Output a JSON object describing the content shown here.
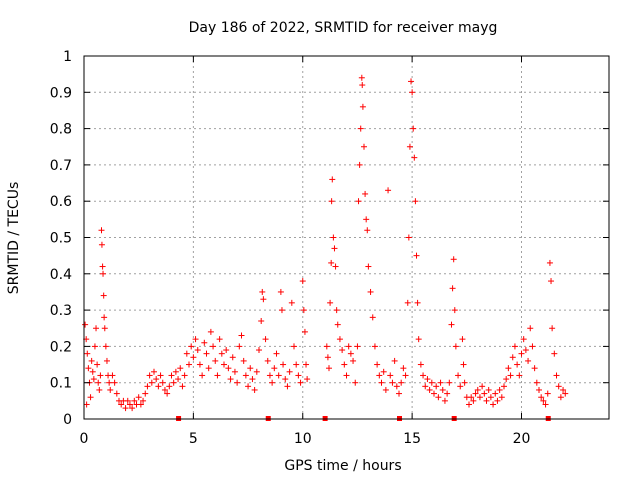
{
  "chart_data": {
    "type": "scatter",
    "title": "Day 186 of 2022, SRMTID for receiver mayg",
    "xlabel": "GPS time / hours",
    "ylabel": "SRMTID / TECUs",
    "xlim": [
      0,
      24
    ],
    "ylim": [
      0,
      1
    ],
    "xticks": [
      0,
      5,
      10,
      15,
      20
    ],
    "yticks": [
      0,
      0.1,
      0.2,
      0.3,
      0.4,
      0.5,
      0.6,
      0.7,
      0.8,
      0.9,
      1
    ],
    "xtick_labels": [
      "0",
      "5",
      "10",
      "15",
      "20"
    ],
    "ytick_labels": [
      "0",
      "0.1",
      "0.2",
      "0.3",
      "0.4",
      "0.5",
      "0.6",
      "0.7",
      "0.8",
      "0.9",
      "1"
    ],
    "grid": true,
    "marker": "+",
    "color": "#ff0000",
    "series": [
      {
        "name": "SRMTID",
        "points": [
          [
            0.05,
            0.26
          ],
          [
            0.1,
            0.22
          ],
          [
            0.15,
            0.18
          ],
          [
            0.2,
            0.14
          ],
          [
            0.25,
            0.1
          ],
          [
            0.3,
            0.06
          ],
          [
            0.12,
            0.04
          ],
          [
            0.35,
            0.16
          ],
          [
            0.4,
            0.13
          ],
          [
            0.45,
            0.11
          ],
          [
            0.5,
            0.2
          ],
          [
            0.55,
            0.25
          ],
          [
            0.6,
            0.15
          ],
          [
            0.65,
            0.1
          ],
          [
            0.7,
            0.08
          ],
          [
            0.75,
            0.12
          ],
          [
            0.8,
            0.52
          ],
          [
            0.82,
            0.48
          ],
          [
            0.85,
            0.42
          ],
          [
            0.87,
            0.4
          ],
          [
            0.9,
            0.34
          ],
          [
            0.92,
            0.28
          ],
          [
            0.95,
            0.25
          ],
          [
            1.0,
            0.2
          ],
          [
            1.05,
            0.16
          ],
          [
            1.1,
            0.12
          ],
          [
            1.15,
            0.1
          ],
          [
            1.2,
            0.08
          ],
          [
            1.3,
            0.12
          ],
          [
            1.4,
            0.1
          ],
          [
            1.5,
            0.07
          ],
          [
            1.6,
            0.05
          ],
          [
            1.7,
            0.04
          ],
          [
            1.8,
            0.05
          ],
          [
            1.9,
            0.03
          ],
          [
            2.0,
            0.05
          ],
          [
            2.1,
            0.04
          ],
          [
            2.2,
            0.03
          ],
          [
            2.3,
            0.05
          ],
          [
            2.4,
            0.04
          ],
          [
            2.5,
            0.06
          ],
          [
            2.6,
            0.04
          ],
          [
            2.7,
            0.05
          ],
          [
            2.8,
            0.07
          ],
          [
            2.9,
            0.09
          ],
          [
            3.0,
            0.12
          ],
          [
            3.1,
            0.1
          ],
          [
            3.2,
            0.13
          ],
          [
            3.3,
            0.11
          ],
          [
            3.4,
            0.09
          ],
          [
            3.5,
            0.12
          ],
          [
            3.6,
            0.1
          ],
          [
            3.7,
            0.08
          ],
          [
            3.8,
            0.07
          ],
          [
            3.9,
            0.09
          ],
          [
            4.0,
            0.12
          ],
          [
            4.1,
            0.1
          ],
          [
            4.2,
            0.13
          ],
          [
            4.3,
            0.11
          ],
          [
            4.4,
            0.14
          ],
          [
            4.5,
            0.09
          ],
          [
            4.6,
            0.12
          ],
          [
            4.7,
            0.18
          ],
          [
            4.8,
            0.15
          ],
          [
            4.9,
            0.2
          ],
          [
            5.0,
            0.17
          ],
          [
            5.1,
            0.22
          ],
          [
            5.2,
            0.19
          ],
          [
            5.3,
            0.15
          ],
          [
            5.4,
            0.12
          ],
          [
            5.5,
            0.21
          ],
          [
            5.6,
            0.18
          ],
          [
            5.7,
            0.14
          ],
          [
            5.8,
            0.24
          ],
          [
            5.9,
            0.2
          ],
          [
            6.0,
            0.16
          ],
          [
            6.1,
            0.12
          ],
          [
            6.2,
            0.22
          ],
          [
            6.3,
            0.18
          ],
          [
            6.4,
            0.15
          ],
          [
            6.5,
            0.19
          ],
          [
            6.6,
            0.14
          ],
          [
            6.7,
            0.11
          ],
          [
            6.8,
            0.17
          ],
          [
            6.9,
            0.13
          ],
          [
            7.0,
            0.1
          ],
          [
            7.1,
            0.2
          ],
          [
            7.2,
            0.23
          ],
          [
            7.3,
            0.16
          ],
          [
            7.4,
            0.12
          ],
          [
            7.5,
            0.09
          ],
          [
            7.6,
            0.14
          ],
          [
            7.7,
            0.11
          ],
          [
            7.8,
            0.08
          ],
          [
            7.9,
            0.13
          ],
          [
            8.0,
            0.19
          ],
          [
            8.1,
            0.27
          ],
          [
            8.15,
            0.35
          ],
          [
            8.2,
            0.33
          ],
          [
            8.3,
            0.22
          ],
          [
            8.4,
            0.16
          ],
          [
            8.5,
            0.12
          ],
          [
            8.6,
            0.1
          ],
          [
            8.7,
            0.14
          ],
          [
            8.8,
            0.18
          ],
          [
            8.9,
            0.12
          ],
          [
            9.0,
            0.35
          ],
          [
            9.05,
            0.3
          ],
          [
            9.1,
            0.15
          ],
          [
            9.2,
            0.11
          ],
          [
            9.3,
            0.09
          ],
          [
            9.4,
            0.13
          ],
          [
            9.5,
            0.32
          ],
          [
            9.6,
            0.2
          ],
          [
            9.7,
            0.15
          ],
          [
            9.8,
            0.12
          ],
          [
            9.9,
            0.1
          ],
          [
            10.0,
            0.38
          ],
          [
            10.05,
            0.3
          ],
          [
            10.1,
            0.24
          ],
          [
            10.15,
            0.15
          ],
          [
            10.2,
            0.11
          ],
          [
            11.1,
            0.2
          ],
          [
            11.15,
            0.17
          ],
          [
            11.2,
            0.14
          ],
          [
            11.25,
            0.32
          ],
          [
            11.3,
            0.43
          ],
          [
            11.32,
            0.6
          ],
          [
            11.35,
            0.66
          ],
          [
            11.4,
            0.5
          ],
          [
            11.45,
            0.47
          ],
          [
            11.5,
            0.42
          ],
          [
            11.55,
            0.3
          ],
          [
            11.6,
            0.26
          ],
          [
            11.7,
            0.22
          ],
          [
            11.8,
            0.19
          ],
          [
            11.9,
            0.15
          ],
          [
            12.0,
            0.12
          ],
          [
            12.1,
            0.2
          ],
          [
            12.2,
            0.18
          ],
          [
            12.3,
            0.16
          ],
          [
            12.4,
            0.1
          ],
          [
            12.5,
            0.2
          ],
          [
            12.55,
            0.6
          ],
          [
            12.6,
            0.7
          ],
          [
            12.65,
            0.8
          ],
          [
            12.7,
            0.94
          ],
          [
            12.72,
            0.92
          ],
          [
            12.75,
            0.86
          ],
          [
            12.8,
            0.75
          ],
          [
            12.85,
            0.62
          ],
          [
            12.9,
            0.55
          ],
          [
            12.95,
            0.52
          ],
          [
            13.0,
            0.42
          ],
          [
            13.1,
            0.35
          ],
          [
            13.2,
            0.28
          ],
          [
            13.3,
            0.2
          ],
          [
            13.4,
            0.15
          ],
          [
            13.5,
            0.12
          ],
          [
            13.6,
            0.1
          ],
          [
            13.7,
            0.13
          ],
          [
            13.8,
            0.08
          ],
          [
            13.9,
            0.63
          ],
          [
            14.0,
            0.12
          ],
          [
            14.1,
            0.1
          ],
          [
            14.2,
            0.16
          ],
          [
            14.3,
            0.09
          ],
          [
            14.4,
            0.07
          ],
          [
            14.5,
            0.1
          ],
          [
            14.6,
            0.14
          ],
          [
            14.7,
            0.12
          ],
          [
            14.8,
            0.32
          ],
          [
            14.85,
            0.5
          ],
          [
            14.9,
            0.75
          ],
          [
            14.95,
            0.93
          ],
          [
            15.0,
            0.9
          ],
          [
            15.05,
            0.8
          ],
          [
            15.1,
            0.72
          ],
          [
            15.15,
            0.6
          ],
          [
            15.2,
            0.45
          ],
          [
            15.25,
            0.32
          ],
          [
            15.3,
            0.22
          ],
          [
            15.4,
            0.15
          ],
          [
            15.5,
            0.12
          ],
          [
            15.6,
            0.09
          ],
          [
            15.7,
            0.11
          ],
          [
            15.8,
            0.08
          ],
          [
            15.9,
            0.1
          ],
          [
            16.0,
            0.07
          ],
          [
            16.1,
            0.09
          ],
          [
            16.2,
            0.06
          ],
          [
            16.3,
            0.1
          ],
          [
            16.4,
            0.08
          ],
          [
            16.5,
            0.05
          ],
          [
            16.6,
            0.07
          ],
          [
            16.7,
            0.1
          ],
          [
            16.8,
            0.26
          ],
          [
            16.85,
            0.36
          ],
          [
            16.9,
            0.44
          ],
          [
            16.95,
            0.3
          ],
          [
            17.0,
            0.2
          ],
          [
            17.1,
            0.12
          ],
          [
            17.2,
            0.09
          ],
          [
            17.3,
            0.22
          ],
          [
            17.35,
            0.15
          ],
          [
            17.4,
            0.1
          ],
          [
            17.5,
            0.06
          ],
          [
            17.6,
            0.04
          ],
          [
            17.7,
            0.06
          ],
          [
            17.8,
            0.05
          ],
          [
            17.9,
            0.07
          ],
          [
            18.0,
            0.08
          ],
          [
            18.1,
            0.06
          ],
          [
            18.2,
            0.09
          ],
          [
            18.3,
            0.07
          ],
          [
            18.4,
            0.05
          ],
          [
            18.5,
            0.08
          ],
          [
            18.6,
            0.06
          ],
          [
            18.7,
            0.04
          ],
          [
            18.8,
            0.07
          ],
          [
            18.9,
            0.05
          ],
          [
            19.0,
            0.08
          ],
          [
            19.1,
            0.06
          ],
          [
            19.2,
            0.09
          ],
          [
            19.3,
            0.11
          ],
          [
            19.4,
            0.14
          ],
          [
            19.5,
            0.12
          ],
          [
            19.6,
            0.17
          ],
          [
            19.7,
            0.2
          ],
          [
            19.8,
            0.15
          ],
          [
            19.9,
            0.12
          ],
          [
            20.0,
            0.18
          ],
          [
            20.1,
            0.22
          ],
          [
            20.2,
            0.19
          ],
          [
            20.3,
            0.16
          ],
          [
            20.4,
            0.25
          ],
          [
            20.5,
            0.2
          ],
          [
            20.6,
            0.14
          ],
          [
            20.7,
            0.1
          ],
          [
            20.8,
            0.08
          ],
          [
            20.9,
            0.06
          ],
          [
            21.0,
            0.05
          ],
          [
            21.1,
            0.04
          ],
          [
            21.2,
            0.07
          ],
          [
            21.3,
            0.43
          ],
          [
            21.35,
            0.38
          ],
          [
            21.4,
            0.25
          ],
          [
            21.5,
            0.18
          ],
          [
            21.6,
            0.12
          ],
          [
            21.7,
            0.09
          ],
          [
            21.8,
            0.06
          ],
          [
            21.9,
            0.08
          ],
          [
            22.0,
            0.07
          ]
        ]
      }
    ],
    "gap_markers_x": [
      4.3,
      8.4,
      11.0,
      14.4,
      16.9,
      21.2
    ]
  }
}
